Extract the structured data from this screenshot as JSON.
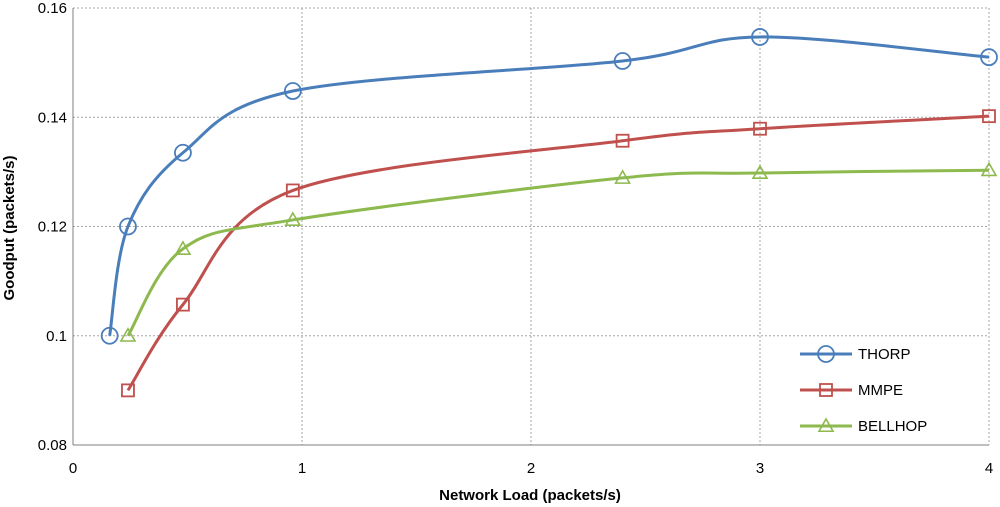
{
  "chart_data": {
    "type": "line",
    "title": "",
    "xlabel": "Network Load (packets/s)",
    "ylabel": "Goodput (packets/s)",
    "xlim": [
      0,
      4
    ],
    "ylim": [
      0.08,
      0.16
    ],
    "x_ticks": [
      "0",
      "1",
      "2",
      "3",
      "4"
    ],
    "y_ticks": [
      "0.08",
      "0.1",
      "0.12",
      "0.14",
      "0.16"
    ],
    "grid": true,
    "legend_position": "bottom-right",
    "series": [
      {
        "name": "THORP",
        "color": "#4a7ebb",
        "marker": "circle",
        "x": [
          0.16,
          0.24,
          0.48,
          0.96,
          2.4,
          3.0,
          4.0
        ],
        "y": [
          0.1,
          0.12,
          0.1335,
          0.1448,
          0.1503,
          0.1547,
          0.151
        ]
      },
      {
        "name": "MMPE",
        "color": "#c0504d",
        "marker": "square",
        "x": [
          0.24,
          0.48,
          0.96,
          2.4,
          3.0,
          4.0
        ],
        "y": [
          0.09,
          0.1057,
          0.1266,
          0.1357,
          0.1379,
          0.1402
        ]
      },
      {
        "name": "BELLHOP",
        "color": "#8db94e",
        "marker": "triangle",
        "x": [
          0.24,
          0.48,
          0.96,
          2.4,
          3.0,
          4.0
        ],
        "y": [
          0.1,
          0.1159,
          0.1212,
          0.1289,
          0.1298,
          0.1303
        ]
      }
    ]
  }
}
